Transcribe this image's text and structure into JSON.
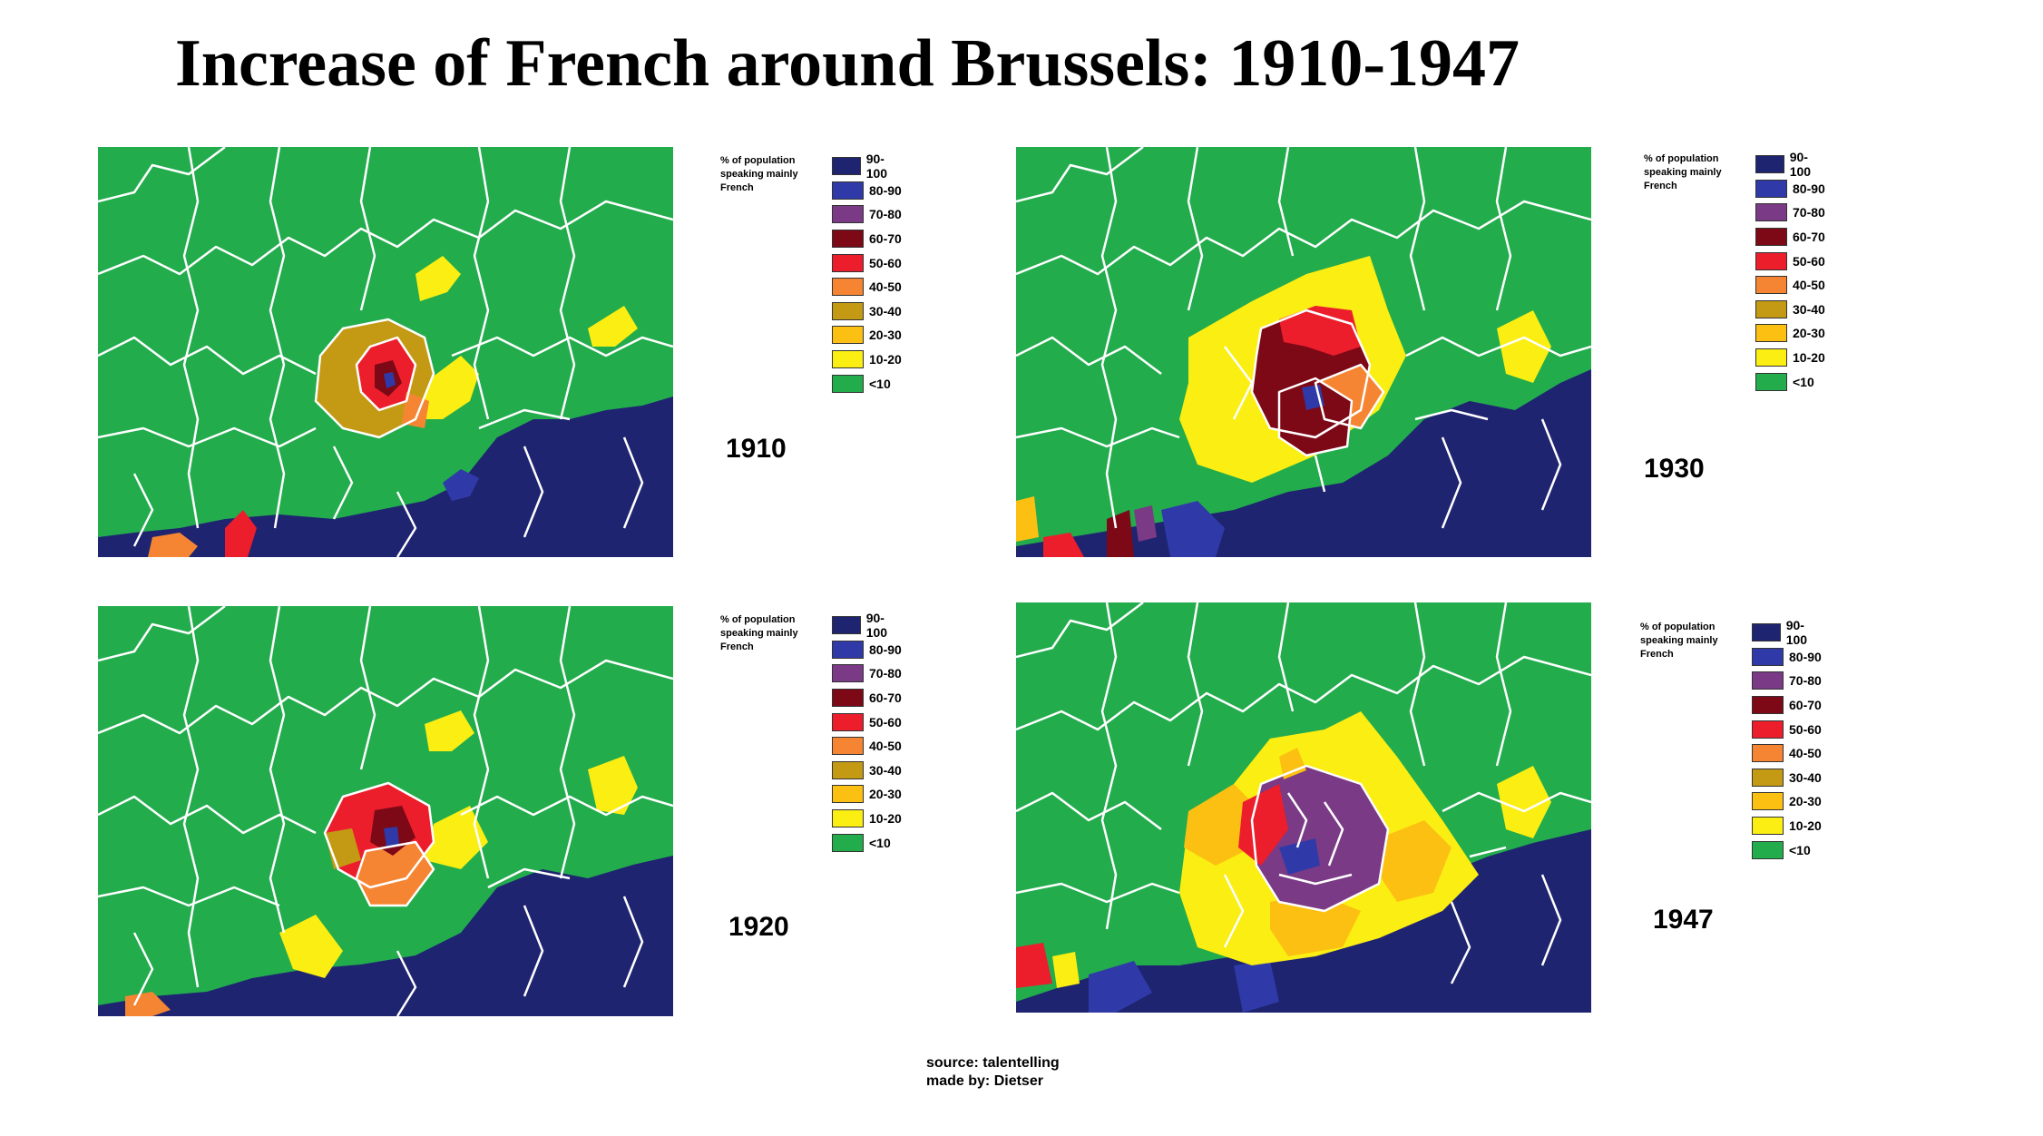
{
  "title": "Increase of French around Brussels: 1910-1947",
  "legend_caption": "% of population speaking mainly French",
  "legend": [
    {
      "label": "90-100",
      "color": "#1f2470"
    },
    {
      "label": "80-90",
      "color": "#2f3aa8"
    },
    {
      "label": "70-80",
      "color": "#7a3a85"
    },
    {
      "label": "60-70",
      "color": "#7d0816"
    },
    {
      "label": "50-60",
      "color": "#ec1e2c"
    },
    {
      "label": "40-50",
      "color": "#f58532"
    },
    {
      "label": "30-40",
      "color": "#c49a14"
    },
    {
      "label": "20-30",
      "color": "#fbc012"
    },
    {
      "label": "10-20",
      "color": "#fbee13"
    },
    {
      "label": "<10",
      "color": "#22ac4c"
    }
  ],
  "maps": [
    {
      "year": "1910",
      "center_class": "60-70",
      "ring_classes": [
        "30-40",
        "50-60",
        "40-50"
      ],
      "outer_class": "10-20"
    },
    {
      "year": "1920",
      "center_class": "60-70",
      "ring_classes": [
        "50-60",
        "40-50",
        "30-40"
      ],
      "outer_class": "10-20"
    },
    {
      "year": "1930",
      "center_class": "60-70",
      "ring_classes": [
        "60-70",
        "40-50",
        "50-60"
      ],
      "outer_class": "10-20"
    },
    {
      "year": "1947",
      "center_class": "70-80",
      "ring_classes": [
        "70-80",
        "50-60",
        "20-30"
      ],
      "outer_class": "10-20"
    }
  ],
  "footer": {
    "source": "source: talentelling",
    "author": "made by: Dietser"
  }
}
